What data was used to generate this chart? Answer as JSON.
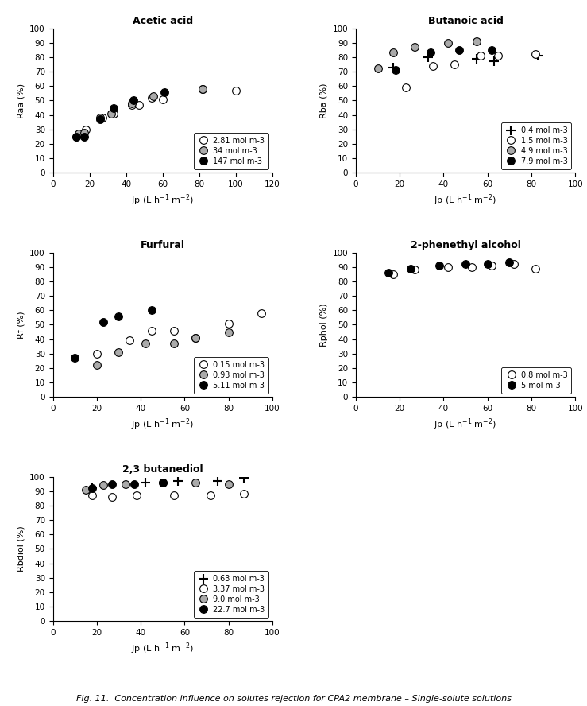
{
  "acetic_acid": {
    "title": "Acetic acid",
    "ylabel": "Raa (%)",
    "xlabel": "Jp (L h$^{-1}$ m$^{-2}$)",
    "xlim": [
      0,
      120
    ],
    "ylim": [
      0,
      100
    ],
    "xticks": [
      0,
      20,
      40,
      60,
      80,
      100,
      120
    ],
    "yticks": [
      0,
      10,
      20,
      30,
      40,
      50,
      60,
      70,
      80,
      90,
      100
    ],
    "series": [
      {
        "label": "2.81 mol m-3",
        "marker": "o",
        "color": "white",
        "edgecolor": "black",
        "x": [
          13,
          18,
          27,
          33,
          43,
          47,
          54,
          60,
          82,
          100
        ],
        "y": [
          25,
          30,
          38,
          41,
          47,
          47,
          52,
          51,
          58,
          57
        ]
      },
      {
        "label": "34 mol m-3",
        "marker": "o",
        "color": "#aaaaaa",
        "edgecolor": "black",
        "x": [
          14,
          17,
          26,
          32,
          43,
          55,
          82
        ],
        "y": [
          27,
          28,
          38,
          41,
          48,
          53,
          58
        ]
      },
      {
        "label": "147 mol m-3",
        "marker": "o",
        "color": "black",
        "edgecolor": "black",
        "x": [
          13,
          17,
          26,
          33,
          44,
          61
        ],
        "y": [
          25,
          25,
          37,
          45,
          50,
          56
        ]
      }
    ],
    "legend_loc": "lower right"
  },
  "butanoic_acid": {
    "title": "Butanoic acid",
    "ylabel": "Rba (%)",
    "xlabel": "Jp (L h$^{-1}$ m$^{-2}$)",
    "xlim": [
      0,
      100
    ],
    "ylim": [
      0,
      100
    ],
    "xticks": [
      0,
      20,
      40,
      60,
      80,
      100
    ],
    "yticks": [
      0,
      10,
      20,
      30,
      40,
      50,
      60,
      70,
      80,
      90,
      100
    ],
    "series": [
      {
        "label": "0.4 mol m-3",
        "marker": "+",
        "color": "black",
        "edgecolor": "black",
        "x": [
          17,
          33,
          55,
          63,
          83
        ],
        "y": [
          73,
          80,
          79,
          77,
          81
        ]
      },
      {
        "label": "1.5 mol m-3",
        "marker": "o",
        "color": "white",
        "edgecolor": "black",
        "x": [
          23,
          35,
          45,
          57,
          65,
          82
        ],
        "y": [
          59,
          74,
          75,
          81,
          81,
          82
        ]
      },
      {
        "label": "4.9 mol m-3",
        "marker": "o",
        "color": "#aaaaaa",
        "edgecolor": "black",
        "x": [
          10,
          17,
          27,
          42,
          55
        ],
        "y": [
          72,
          83,
          87,
          90,
          91
        ]
      },
      {
        "label": "7.9 mol m-3",
        "marker": "o",
        "color": "black",
        "edgecolor": "black",
        "x": [
          18,
          34,
          47,
          62
        ],
        "y": [
          71,
          83,
          85,
          85
        ]
      }
    ],
    "legend_loc": "lower right"
  },
  "furfural": {
    "title": "Furfural",
    "ylabel": "Rf (%)",
    "xlabel": "Jp (L h$^{-1}$ m$^{-2}$)",
    "xlim": [
      0,
      100
    ],
    "ylim": [
      0,
      100
    ],
    "xticks": [
      0,
      20,
      40,
      60,
      80,
      100
    ],
    "yticks": [
      0,
      10,
      20,
      30,
      40,
      50,
      60,
      70,
      80,
      90,
      100
    ],
    "series": [
      {
        "label": "0.15 mol m-3",
        "marker": "o",
        "color": "white",
        "edgecolor": "black",
        "x": [
          20,
          35,
          45,
          55,
          65,
          80,
          95
        ],
        "y": [
          30,
          39,
          46,
          46,
          41,
          51,
          58
        ]
      },
      {
        "label": "0.93 mol m-3",
        "marker": "o",
        "color": "#aaaaaa",
        "edgecolor": "black",
        "x": [
          20,
          30,
          42,
          55,
          65,
          80
        ],
        "y": [
          22,
          31,
          37,
          37,
          41,
          45
        ]
      },
      {
        "label": "5.11 mol m-3",
        "marker": "o",
        "color": "black",
        "edgecolor": "black",
        "x": [
          10,
          23,
          30,
          45
        ],
        "y": [
          27,
          52,
          56,
          60
        ]
      }
    ],
    "legend_loc": "lower right"
  },
  "phenethyl_alcohol": {
    "title": "2-phenethyl alcohol",
    "ylabel": "Rphol (%)",
    "xlabel": "Jp (L h$^{-1}$ m$^{-2}$)",
    "xlim": [
      0,
      100
    ],
    "ylim": [
      0,
      100
    ],
    "xticks": [
      0,
      20,
      40,
      60,
      80,
      100
    ],
    "yticks": [
      0,
      10,
      20,
      30,
      40,
      50,
      60,
      70,
      80,
      90,
      100
    ],
    "series": [
      {
        "label": "0.8 mol m-3",
        "marker": "o",
        "color": "white",
        "edgecolor": "black",
        "x": [
          17,
          27,
          42,
          53,
          62,
          72,
          82
        ],
        "y": [
          85,
          88,
          90,
          90,
          91,
          92,
          89
        ]
      },
      {
        "label": "5 mol m-3",
        "marker": "o",
        "color": "black",
        "edgecolor": "black",
        "x": [
          15,
          25,
          38,
          50,
          60,
          70
        ],
        "y": [
          86,
          89,
          91,
          92,
          92,
          93
        ]
      }
    ],
    "legend_loc": "lower right"
  },
  "butanediol": {
    "title": "2,3 butanediol",
    "ylabel": "Rbdiol (%)",
    "xlabel": "Jp (L h$^{-1}$ m$^{-2}$)",
    "xlim": [
      0,
      100
    ],
    "ylim": [
      0,
      100
    ],
    "xticks": [
      0,
      20,
      40,
      60,
      80,
      100
    ],
    "yticks": [
      0,
      10,
      20,
      30,
      40,
      50,
      60,
      70,
      80,
      90,
      100
    ],
    "series": [
      {
        "label": "0.63 mol m-3",
        "marker": "+",
        "color": "black",
        "edgecolor": "black",
        "x": [
          18,
          42,
          57,
          75,
          87
        ],
        "y": [
          92,
          96,
          97,
          97,
          99
        ]
      },
      {
        "label": "3.37 mol m-3",
        "marker": "o",
        "color": "white",
        "edgecolor": "black",
        "x": [
          18,
          27,
          38,
          55,
          72,
          87
        ],
        "y": [
          87,
          86,
          87,
          87,
          87,
          88
        ]
      },
      {
        "label": "9.0 mol m-3",
        "marker": "o",
        "color": "#aaaaaa",
        "edgecolor": "black",
        "x": [
          15,
          23,
          33,
          50,
          65,
          80
        ],
        "y": [
          91,
          94,
          95,
          96,
          96,
          95
        ]
      },
      {
        "label": "22.7 mol m-3",
        "marker": "o",
        "color": "black",
        "edgecolor": "black",
        "x": [
          18,
          27,
          37,
          50
        ],
        "y": [
          92,
          95,
          95,
          96
        ]
      }
    ],
    "legend_loc": "lower right"
  },
  "figure_title": "Fig. 11.  Concentration influence on solutes rejection for CPA2 membrane – Single-solute solutions",
  "background_color": "#ffffff"
}
